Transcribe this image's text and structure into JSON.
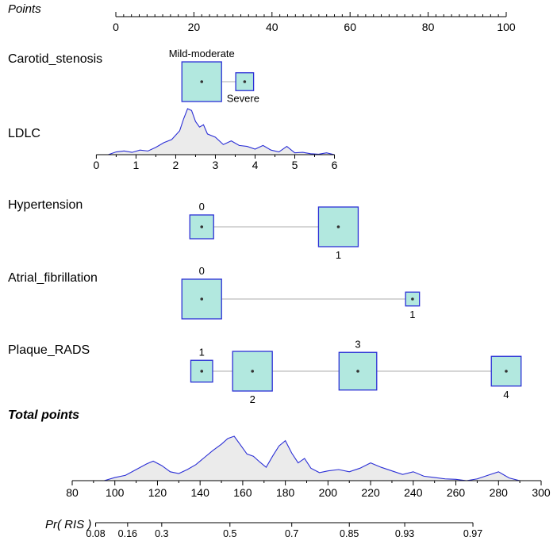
{
  "chart_data": {
    "type": "nomogram",
    "colors": {
      "box_fill": "#b2e8df",
      "box_stroke": "#2b2fd6",
      "density_line": "#2b2fd6",
      "density_fill": "#ebebeb",
      "connector": "#bdbdbd"
    },
    "points": {
      "title": "Points",
      "range": [
        0,
        100
      ],
      "ticks": [
        {
          "v": 0,
          "label": "0"
        },
        {
          "v": 20,
          "label": "20"
        },
        {
          "v": 40,
          "label": "40"
        },
        {
          "v": 60,
          "label": "60"
        },
        {
          "v": 80,
          "label": "80"
        },
        {
          "v": 100,
          "label": "100"
        }
      ]
    },
    "variables": [
      {
        "name": "Carotid_stenosis",
        "type": "categorical",
        "levels": [
          {
            "label": "Mild-moderate",
            "points": 22,
            "size": 1.0,
            "label_pos": "above"
          },
          {
            "label": "Severe",
            "points": 33,
            "size": 0.45,
            "label_pos": "below"
          }
        ]
      },
      {
        "name": "LDLC",
        "type": "continuous",
        "axis_min": 0,
        "axis_max": 6,
        "points_min": -5,
        "points_max": 56,
        "ticks": [
          {
            "v": 0,
            "label": "0"
          },
          {
            "v": 1,
            "label": "1"
          },
          {
            "v": 2,
            "label": "2"
          },
          {
            "v": 3,
            "label": "3"
          },
          {
            "v": 4,
            "label": "4"
          },
          {
            "v": 5,
            "label": "5"
          },
          {
            "v": 6,
            "label": "6"
          }
        ],
        "density": {
          "x": [
            0.3,
            0.5,
            0.7,
            0.9,
            1.1,
            1.3,
            1.5,
            1.7,
            1.9,
            2.1,
            2.2,
            2.3,
            2.4,
            2.5,
            2.6,
            2.7,
            2.8,
            3.0,
            3.2,
            3.4,
            3.6,
            3.8,
            4.0,
            4.2,
            4.4,
            4.6,
            4.8,
            5.0,
            5.2,
            5.4,
            5.6,
            5.8,
            6.0
          ],
          "y": [
            0,
            0.06,
            0.08,
            0.05,
            0.1,
            0.08,
            0.16,
            0.26,
            0.33,
            0.52,
            0.78,
            1.0,
            0.96,
            0.72,
            0.6,
            0.65,
            0.45,
            0.38,
            0.22,
            0.3,
            0.2,
            0.18,
            0.12,
            0.2,
            0.1,
            0.06,
            0.18,
            0.04,
            0.05,
            0.02,
            0.01,
            0.04,
            0.0
          ]
        }
      },
      {
        "name": "Hypertension",
        "type": "categorical",
        "levels": [
          {
            "label": "0",
            "points": 22,
            "size": 0.6,
            "label_pos": "above"
          },
          {
            "label": "1",
            "points": 57,
            "size": 1.0,
            "label_pos": "below"
          }
        ]
      },
      {
        "name": "Atrial_fibrillation",
        "type": "categorical",
        "levels": [
          {
            "label": "0",
            "points": 22,
            "size": 1.0,
            "label_pos": "above"
          },
          {
            "label": "1",
            "points": 76,
            "size": 0.35,
            "label_pos": "below"
          }
        ]
      },
      {
        "name": "Plaque_RADS",
        "type": "categorical",
        "levels": [
          {
            "label": "1",
            "points": 22,
            "size": 0.55,
            "label_pos": "above"
          },
          {
            "label": "2",
            "points": 35,
            "size": 1.0,
            "label_pos": "below"
          },
          {
            "label": "3",
            "points": 62,
            "size": 0.95,
            "label_pos": "above"
          },
          {
            "label": "4",
            "points": 100,
            "size": 0.75,
            "label_pos": "below"
          }
        ]
      }
    ],
    "total_points": {
      "title": "Total points",
      "range": [
        80,
        300
      ],
      "ticks": [
        {
          "v": 80,
          "label": "80"
        },
        {
          "v": 100,
          "label": "100"
        },
        {
          "v": 120,
          "label": "120"
        },
        {
          "v": 140,
          "label": "140"
        },
        {
          "v": 160,
          "label": "160"
        },
        {
          "v": 180,
          "label": "180"
        },
        {
          "v": 200,
          "label": "200"
        },
        {
          "v": 220,
          "label": "220"
        },
        {
          "v": 240,
          "label": "240"
        },
        {
          "v": 260,
          "label": "260"
        },
        {
          "v": 280,
          "label": "280"
        },
        {
          "v": 300,
          "label": "300"
        }
      ],
      "density": {
        "x": [
          95,
          100,
          105,
          110,
          115,
          118,
          122,
          126,
          130,
          134,
          138,
          142,
          146,
          150,
          153,
          156,
          159,
          162,
          165,
          168,
          171,
          174,
          177,
          180,
          183,
          186,
          189,
          192,
          196,
          200,
          205,
          210,
          215,
          220,
          225,
          230,
          235,
          240,
          245,
          250,
          255,
          260,
          265,
          270,
          275,
          280,
          285,
          290
        ],
        "y": [
          0,
          0.07,
          0.12,
          0.25,
          0.38,
          0.44,
          0.34,
          0.2,
          0.16,
          0.25,
          0.36,
          0.52,
          0.68,
          0.82,
          0.95,
          1.0,
          0.8,
          0.6,
          0.55,
          0.42,
          0.3,
          0.55,
          0.78,
          0.9,
          0.62,
          0.4,
          0.5,
          0.28,
          0.18,
          0.22,
          0.25,
          0.2,
          0.28,
          0.4,
          0.3,
          0.22,
          0.14,
          0.2,
          0.1,
          0.07,
          0.04,
          0.03,
          0.0,
          0.04,
          0.12,
          0.2,
          0.06,
          0.0
        ]
      }
    },
    "probability": {
      "title": "Pr( RIS )",
      "points_min": 91,
      "points_max": 268,
      "ticks": [
        {
          "v": 0.08,
          "label": "0.08",
          "total": 91
        },
        {
          "v": 0.16,
          "label": "0.16",
          "total": 106
        },
        {
          "v": 0.3,
          "label": "0.3",
          "total": 122
        },
        {
          "v": 0.5,
          "label": "0.5",
          "total": 154
        },
        {
          "v": 0.7,
          "label": "0.7",
          "total": 183
        },
        {
          "v": 0.85,
          "label": "0.85",
          "total": 210
        },
        {
          "v": 0.93,
          "label": "0.93",
          "total": 236
        },
        {
          "v": 0.97,
          "label": "0.97",
          "total": 268
        }
      ]
    }
  }
}
